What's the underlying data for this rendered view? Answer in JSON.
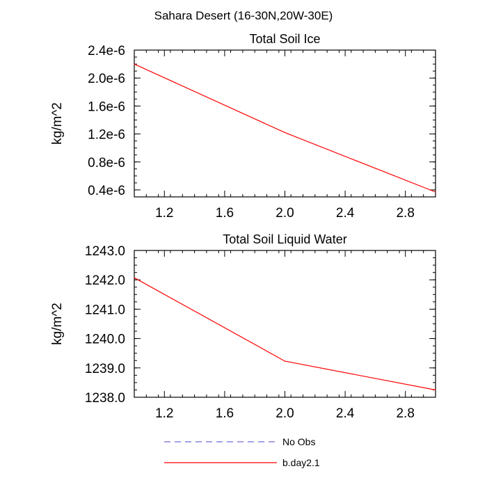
{
  "page_title": "Sahara Desert (16-30N,20W-30E)",
  "chart_data": [
    {
      "type": "line",
      "title": "Total Soil Ice",
      "xlabel": "",
      "ylabel": "kg/m^2",
      "xlim": [
        1.0,
        3.0
      ],
      "ylim": [
        3e-07,
        2.4e-06
      ],
      "xticks": [
        1.2,
        1.6,
        2.0,
        2.4,
        2.8
      ],
      "xtick_labels": [
        "1.2",
        "1.6",
        "2.0",
        "2.4",
        "2.8"
      ],
      "yticks": [
        4e-07,
        8e-07,
        1.2e-06,
        1.6e-06,
        2e-06,
        2.4e-06
      ],
      "ytick_labels": [
        "0.4e-6",
        "0.8e-6",
        "1.2e-6",
        "1.6e-6",
        "2.0e-6",
        "2.4e-6"
      ],
      "x": [
        1,
        2,
        3
      ],
      "series": [
        {
          "name": "b.day2.1",
          "color": "#ff0000",
          "dash": "solid",
          "values": [
            2.2e-06,
            1.22e-06,
            3.7e-07
          ]
        }
      ],
      "grid": false
    },
    {
      "type": "line",
      "title": "Total Soil Liquid Water",
      "xlabel": "",
      "ylabel": "kg/m^2",
      "xlim": [
        1.0,
        3.0
      ],
      "ylim": [
        1238.0,
        1243.0
      ],
      "xticks": [
        1.2,
        1.6,
        2.0,
        2.4,
        2.8
      ],
      "xtick_labels": [
        "1.2",
        "1.6",
        "2.0",
        "2.4",
        "2.8"
      ],
      "yticks": [
        1238.0,
        1239.0,
        1240.0,
        1241.0,
        1242.0,
        1243.0
      ],
      "ytick_labels": [
        "1238.0",
        "1239.0",
        "1240.0",
        "1241.0",
        "1242.0",
        "1243.0"
      ],
      "x": [
        1,
        2,
        3
      ],
      "series": [
        {
          "name": "b.day2.1",
          "color": "#ff0000",
          "dash": "solid",
          "values": [
            1242.07,
            1239.23,
            1238.25
          ]
        }
      ],
      "grid": false
    }
  ],
  "legend": {
    "placement": "bottom-center",
    "items": [
      {
        "label": "No Obs",
        "color": "#6b6bd9",
        "dash": "dashed"
      },
      {
        "label": "b.day2.1",
        "color": "#ff0000",
        "dash": "solid"
      }
    ]
  }
}
